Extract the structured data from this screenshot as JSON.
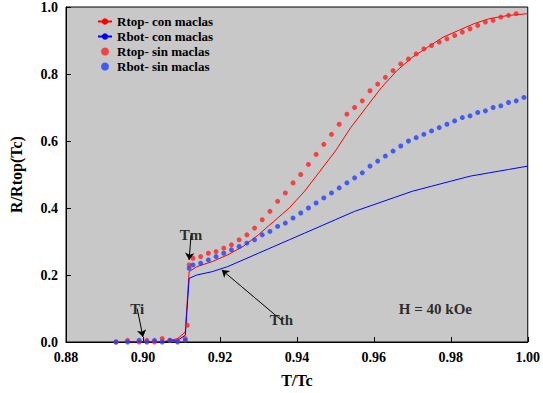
{
  "chart_data": {
    "type": "line",
    "x_label": "T/Tc",
    "y_label": "R/Rtop(Tc)",
    "xlim": [
      0.88,
      1.0
    ],
    "xticks": [
      0.88,
      {
        "value": 0.9,
        "label": "0.90"
      },
      0.92,
      0.94,
      0.96,
      0.98,
      {
        "value": 1.0,
        "label": "1.00"
      }
    ],
    "ylim": [
      0,
      1.0
    ],
    "yticks": [
      {
        "value": 0,
        "label": "0.0"
      },
      0.2,
      0.4,
      0.6,
      0.8,
      {
        "value": 1.0,
        "label": "1.0"
      }
    ],
    "legend": "upper left",
    "series": [
      {
        "name": "Rtop- con maclas",
        "color": "#ff0000",
        "type": "line",
        "line_style": "solid",
        "x": [
          0.895,
          0.905,
          0.909,
          0.911,
          0.912,
          0.914,
          0.918,
          0.922,
          0.926,
          0.93,
          0.934,
          0.938,
          0.942,
          0.946,
          0.95,
          0.954,
          0.958,
          0.962,
          0.966,
          0.97,
          0.974,
          0.978,
          0.982,
          0.986,
          0.99,
          0.995,
          1.0
        ],
        "values": [
          0.0,
          0.0,
          0.01,
          0.03,
          0.21,
          0.225,
          0.24,
          0.26,
          0.285,
          0.32,
          0.36,
          0.4,
          0.45,
          0.51,
          0.57,
          0.64,
          0.7,
          0.76,
          0.81,
          0.85,
          0.88,
          0.91,
          0.93,
          0.95,
          0.965,
          0.975,
          0.98
        ]
      },
      {
        "name": "Rbot- con maclas",
        "color": "#0000ff",
        "type": "line",
        "line_style": "solid",
        "x": [
          0.895,
          0.905,
          0.909,
          0.911,
          0.912,
          0.914,
          0.918,
          0.922,
          0.926,
          0.93,
          0.934,
          0.938,
          0.942,
          0.946,
          0.95,
          0.955,
          0.96,
          0.965,
          0.97,
          0.975,
          0.98,
          0.985,
          0.99,
          0.995,
          1.0
        ],
        "values": [
          0.0,
          0.0,
          0.005,
          0.02,
          0.19,
          0.2,
          0.21,
          0.225,
          0.245,
          0.265,
          0.285,
          0.305,
          0.325,
          0.345,
          0.365,
          0.39,
          0.41,
          0.43,
          0.45,
          0.465,
          0.48,
          0.495,
          0.505,
          0.515,
          0.525
        ]
      },
      {
        "name": "Rtop- sin maclas",
        "color": "#ff2020",
        "type": "scatter",
        "marker": "circle",
        "x": [
          0.893,
          0.896,
          0.899,
          0.901,
          0.903,
          0.905,
          0.907,
          0.909,
          0.911,
          0.9115,
          0.912,
          0.913,
          0.915,
          0.917,
          0.919,
          0.921,
          0.923,
          0.925,
          0.927,
          0.929,
          0.931,
          0.933,
          0.935,
          0.937,
          0.939,
          0.941,
          0.943,
          0.945,
          0.947,
          0.949,
          0.951,
          0.953,
          0.955,
          0.957,
          0.959,
          0.961,
          0.963,
          0.965,
          0.967,
          0.969,
          0.971,
          0.973,
          0.975,
          0.977,
          0.979,
          0.981,
          0.983,
          0.985,
          0.987,
          0.989,
          0.991,
          0.993,
          0.995,
          0.997
        ],
        "values": [
          0.0,
          0.005,
          0.0,
          0.005,
          0.0,
          0.01,
          0.005,
          0.005,
          0.01,
          0.05,
          0.23,
          0.25,
          0.255,
          0.265,
          0.27,
          0.28,
          0.29,
          0.305,
          0.32,
          0.34,
          0.365,
          0.39,
          0.42,
          0.445,
          0.475,
          0.5,
          0.53,
          0.56,
          0.59,
          0.62,
          0.65,
          0.68,
          0.7,
          0.72,
          0.75,
          0.77,
          0.79,
          0.81,
          0.83,
          0.845,
          0.86,
          0.875,
          0.885,
          0.895,
          0.905,
          0.915,
          0.925,
          0.935,
          0.945,
          0.955,
          0.96,
          0.97,
          0.975,
          0.98
        ]
      },
      {
        "name": "Rbot- sin maclas",
        "color": "#2040ff",
        "type": "scatter",
        "marker": "circle",
        "x": [
          0.893,
          0.896,
          0.899,
          0.901,
          0.903,
          0.905,
          0.907,
          0.909,
          0.911,
          0.912,
          0.913,
          0.915,
          0.917,
          0.919,
          0.921,
          0.923,
          0.925,
          0.927,
          0.929,
          0.931,
          0.933,
          0.935,
          0.937,
          0.939,
          0.941,
          0.943,
          0.945,
          0.947,
          0.949,
          0.951,
          0.953,
          0.955,
          0.957,
          0.959,
          0.961,
          0.963,
          0.965,
          0.967,
          0.969,
          0.971,
          0.973,
          0.975,
          0.977,
          0.979,
          0.981,
          0.983,
          0.985,
          0.987,
          0.989,
          0.991,
          0.993,
          0.995,
          0.997,
          0.999
        ],
        "values": [
          0.0,
          0.0,
          0.005,
          0.0,
          0.005,
          0.0,
          0.005,
          0.0,
          0.005,
          0.22,
          0.23,
          0.235,
          0.245,
          0.255,
          0.265,
          0.275,
          0.285,
          0.295,
          0.305,
          0.32,
          0.33,
          0.345,
          0.355,
          0.37,
          0.385,
          0.4,
          0.415,
          0.43,
          0.445,
          0.46,
          0.475,
          0.49,
          0.505,
          0.525,
          0.54,
          0.555,
          0.57,
          0.585,
          0.6,
          0.61,
          0.62,
          0.63,
          0.64,
          0.65,
          0.66,
          0.67,
          0.675,
          0.685,
          0.69,
          0.7,
          0.705,
          0.715,
          0.72,
          0.73
        ]
      }
    ],
    "annotations": [
      {
        "text": "Ti",
        "x": 0.8985,
        "y": 0.1,
        "arrow_to": [
          0.9,
          0.015
        ]
      },
      {
        "text": "Tm",
        "x": 0.9125,
        "y": 0.32,
        "arrow_to": [
          0.912,
          0.245
        ]
      },
      {
        "text": "Tth",
        "x": 0.936,
        "y": 0.065,
        "arrow_to": [
          0.9205,
          0.215
        ]
      },
      {
        "text": "H = 40 kOe",
        "x": 0.976,
        "y": 0.1
      }
    ]
  }
}
